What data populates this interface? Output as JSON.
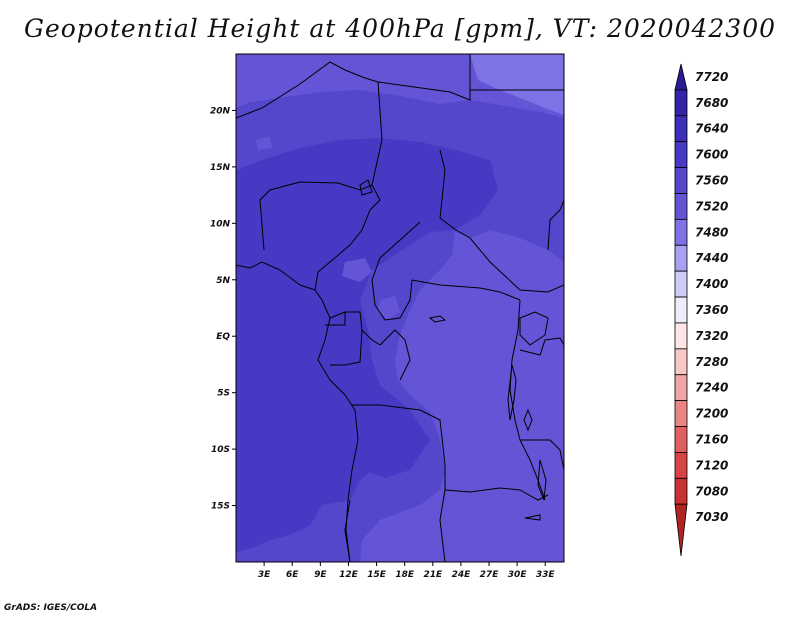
{
  "title": "Geopotential Height at 400hPa [gpm], VT: 2020042300",
  "footer": "GrADS: IGES/COLA",
  "map": {
    "lat_labels": [
      "20N",
      "15N",
      "10N",
      "5N",
      "EQ",
      "5S",
      "10S",
      "15S"
    ],
    "lat_values": [
      20,
      15,
      10,
      5,
      0,
      -5,
      -10,
      -15
    ],
    "lon_labels": [
      "3E",
      "6E",
      "9E",
      "12E",
      "15E",
      "18E",
      "21E",
      "24E",
      "27E",
      "30E",
      "33E"
    ],
    "lon_values": [
      3,
      6,
      9,
      12,
      15,
      18,
      21,
      24,
      27,
      30,
      33
    ],
    "lon_range": [
      0,
      35
    ],
    "lat_range": [
      -20,
      25
    ]
  },
  "colorbar": {
    "labels": [
      "7720",
      "7680",
      "7640",
      "7600",
      "7560",
      "7520",
      "7480",
      "7440",
      "7400",
      "7360",
      "7320",
      "7280",
      "7240",
      "7200",
      "7160",
      "7120",
      "7080",
      "7030"
    ],
    "colors": [
      "#2a1b96",
      "#3422a8",
      "#3b2fb8",
      "#4639c4",
      "#5447cc",
      "#6455d6",
      "#7d72e6",
      "#a8a1f0",
      "#cfcbf7",
      "#ececfb",
      "#fde6e6",
      "#f8c8c8",
      "#f1a5a5",
      "#e98585",
      "#e06060",
      "#d84444",
      "#c93232",
      "#b02424"
    ]
  },
  "fills": {
    "level_7600": "#4639c4",
    "level_7560": "#5447cc",
    "level_7520": "#6455d6",
    "level_7480": "#7d72e6",
    "borders": "#000000"
  }
}
